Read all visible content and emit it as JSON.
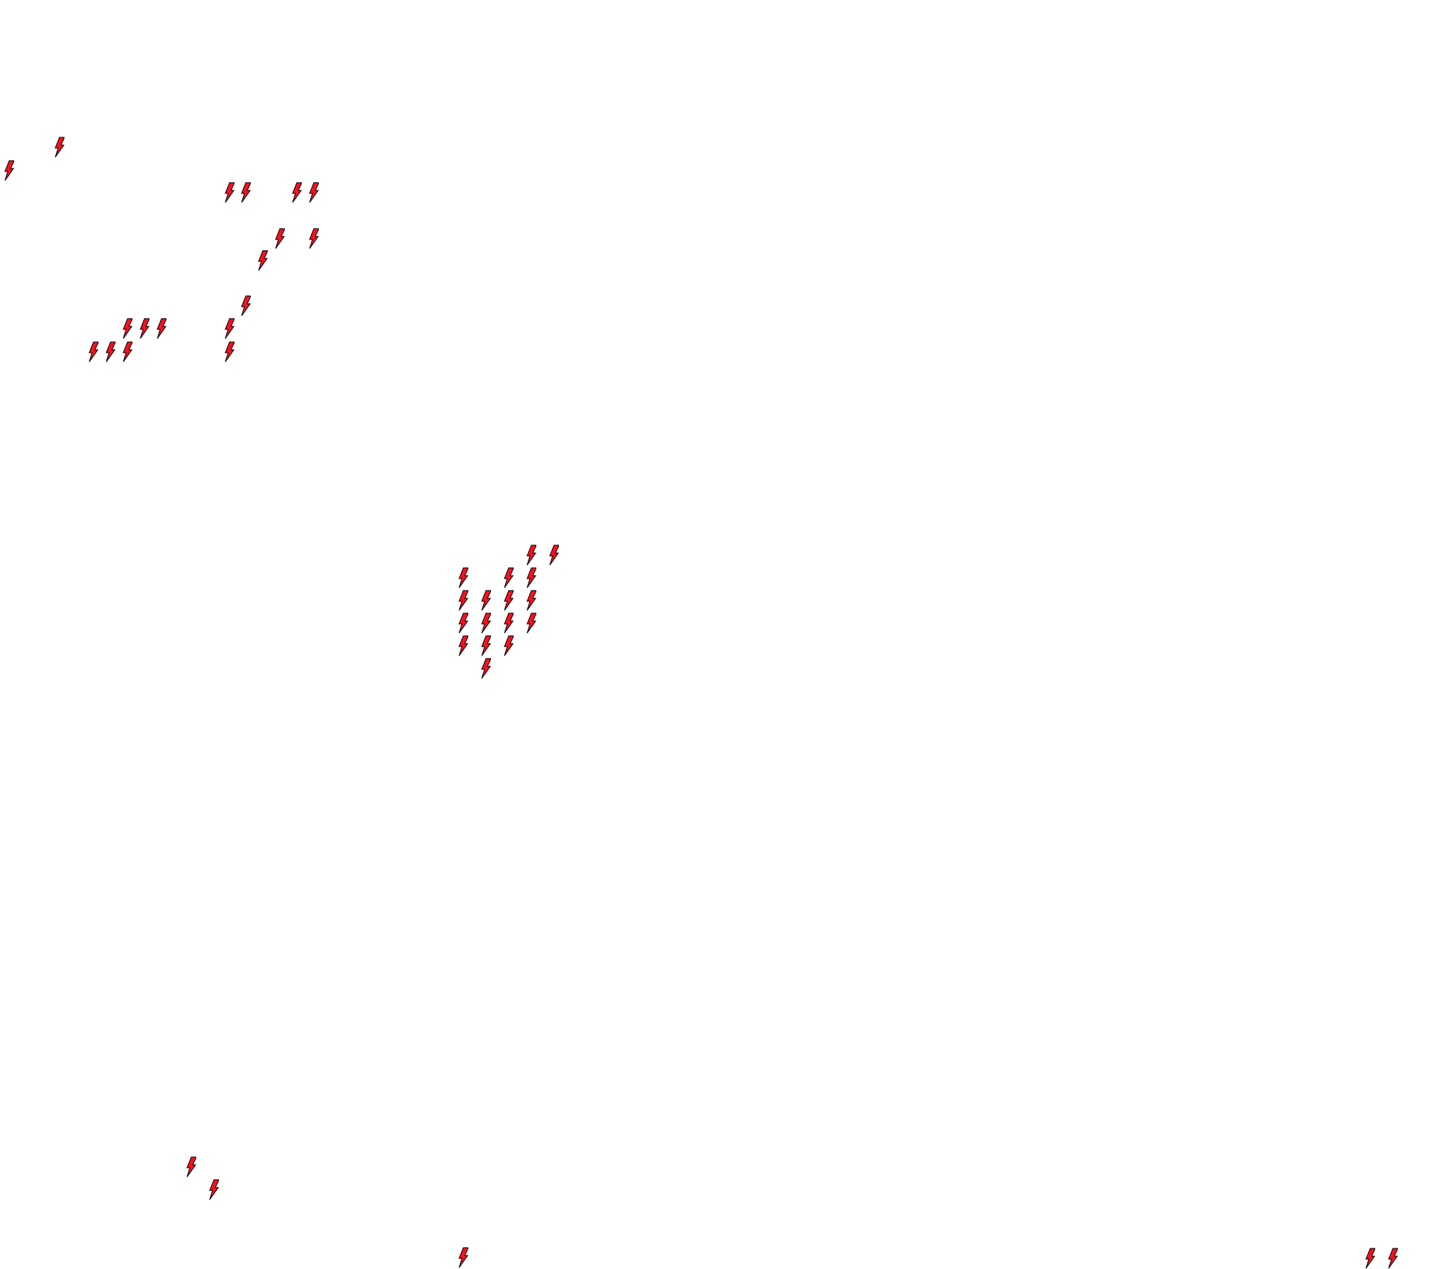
{
  "map": {
    "background_color": "#ffffff",
    "marker_icon": "lightning-bolt-icon",
    "marker_fill": "#ff1020",
    "marker_stroke": "#111111"
  }
}
